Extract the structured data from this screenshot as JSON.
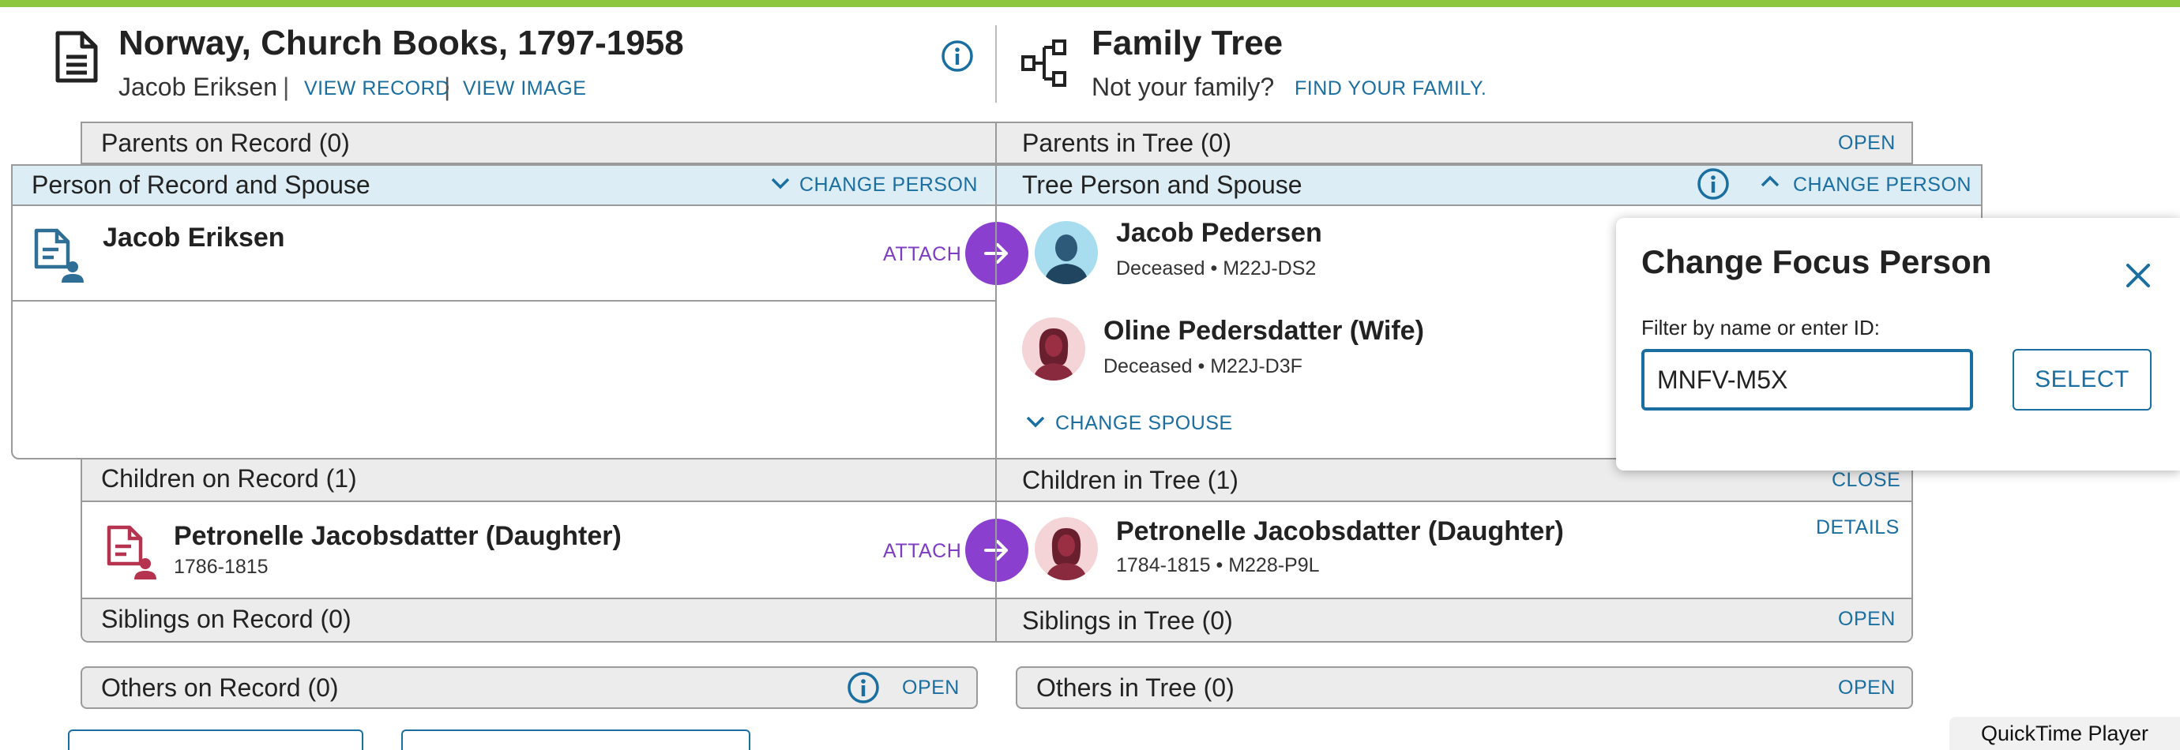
{
  "record": {
    "title": "Norway, Church Books, 1797-1958",
    "person_name": "Jacob Eriksen",
    "view_record": "VIEW RECORD",
    "view_image": "VIEW IMAGE",
    "separator": "|"
  },
  "tree": {
    "title": "Family Tree",
    "not_your_family": "Not your family?",
    "find_family": "FIND YOUR FAMILY."
  },
  "sections": {
    "parents_record": "Parents on Record (0)",
    "parents_tree": "Parents in Tree (0)",
    "parents_tree_action": "OPEN",
    "person_record": "Person of Record and Spouse",
    "person_record_action": "CHANGE PERSON",
    "person_tree": "Tree Person and Spouse",
    "person_tree_action": "CHANGE PERSON",
    "children_record": "Children on Record (1)",
    "children_tree": "Children in Tree (1)",
    "children_tree_action": "CLOSE",
    "siblings_record": "Siblings on Record (0)",
    "siblings_tree": "Siblings in Tree (0)",
    "siblings_tree_action": "OPEN",
    "others_record": "Others on Record (0)",
    "others_record_action": "OPEN",
    "others_tree": "Others in Tree (0)",
    "others_tree_action": "OPEN"
  },
  "record_person": {
    "name": "Jacob Eriksen",
    "attach": "ATTACH"
  },
  "tree_person": {
    "name": "Jacob Pedersen",
    "meta": "Deceased • M22J-DS2"
  },
  "tree_spouse": {
    "name": "Oline Pedersdatter (Wife)",
    "meta": "Deceased • M22J-D3F",
    "change_spouse": "CHANGE SPOUSE"
  },
  "record_child": {
    "name": "Petronelle Jacobsdatter (Daughter)",
    "meta": "1786-1815",
    "attach": "ATTACH"
  },
  "tree_child": {
    "name": "Petronelle Jacobsdatter (Daughter)",
    "meta": "1784-1815 • M228-P9L",
    "details": "DETAILS"
  },
  "popup": {
    "title": "Change Focus Person",
    "label": "Filter by name or enter ID:",
    "input_value": "MNFV-M5X",
    "select": "SELECT"
  },
  "app": {
    "quicktime": "QuickTime Player"
  },
  "colors": {
    "accent": "#1a6ea0",
    "attach_purple": "#8a3fce",
    "header_gray": "#ececec",
    "header_blue": "#dcedf5",
    "top_bar_green": "#8dc63f",
    "record_icon_blue": "#2f6f96",
    "record_icon_red": "#b5334f"
  }
}
